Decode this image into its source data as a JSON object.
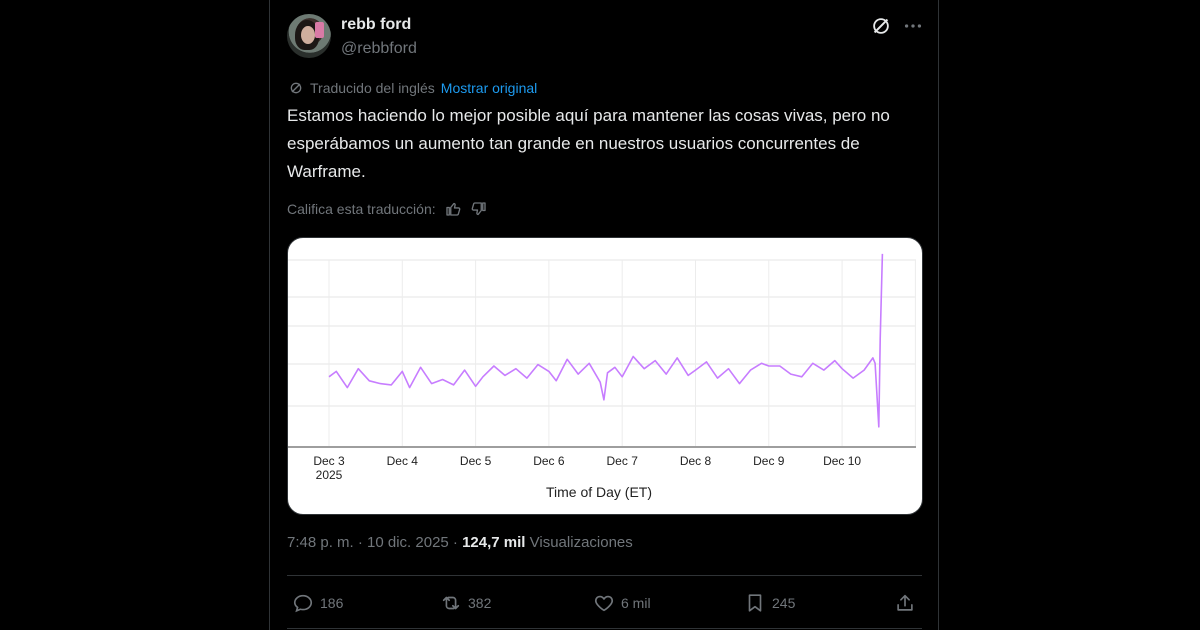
{
  "post": {
    "display_name": "rebb ford",
    "handle": "@rebbford",
    "translated_label": "Traducido del inglés",
    "show_original": "Mostrar original",
    "text": "Estamos haciendo lo mejor posible aquí para mantener las cosas vivas, pero no esperábamos un aumento tan grande en nuestros usuarios concurrentes de Warframe.",
    "rate_label": "Califica esta traducción:",
    "timestamp": "7:48 p. m. · 10 dic. 2025 · ",
    "views_count": "124,7 mil",
    "views_label": " Visualizaciones"
  },
  "actions": {
    "replies": "186",
    "reposts": "382",
    "likes": "6 mil",
    "bookmarks": "245"
  },
  "icons": [
    "grok-icon",
    "more-icon",
    "translate-icon",
    "thumbs-up-icon",
    "thumbs-down-icon",
    "reply-icon",
    "repost-icon",
    "like-icon",
    "bookmark-icon",
    "share-icon"
  ],
  "colors": {
    "accent": "#1d9bf0",
    "line": "#c77dff"
  },
  "chart_data": {
    "type": "line",
    "title": "",
    "xlabel": "Time of Day (ET)",
    "ylabel": "",
    "tick_labels": [
      "Dec 3",
      "Dec 4",
      "Dec 5",
      "Dec 6",
      "Dec 7",
      "Dec 8",
      "Dec 9",
      "Dec 10"
    ],
    "year_label": "2025",
    "grid": true,
    "x": [
      3.0,
      3.1,
      3.25,
      3.4,
      3.55,
      3.7,
      3.85,
      4.0,
      4.1,
      4.25,
      4.4,
      4.55,
      4.7,
      4.85,
      5.0,
      5.1,
      5.25,
      5.4,
      5.55,
      5.7,
      5.85,
      6.0,
      6.1,
      6.25,
      6.4,
      6.55,
      6.7,
      6.75,
      6.8,
      6.9,
      7.0,
      7.15,
      7.3,
      7.45,
      7.6,
      7.75,
      7.9,
      8.0,
      8.15,
      8.3,
      8.45,
      8.6,
      8.75,
      8.9,
      9.0,
      9.15,
      9.3,
      9.45,
      9.6,
      9.75,
      9.9,
      10.0,
      10.15,
      10.3,
      10.42,
      10.45,
      10.5,
      10.52,
      10.55
    ],
    "series": [
      {
        "values": [
          52,
          56,
          44,
          58,
          49,
          47,
          46,
          56,
          44,
          59,
          47,
          50,
          46,
          57,
          45,
          52,
          60,
          53,
          58,
          51,
          61,
          56,
          49,
          65,
          54,
          62,
          48,
          35,
          55,
          59,
          52,
          67,
          58,
          64,
          54,
          66,
          53,
          57,
          63,
          51,
          58,
          47,
          57,
          62,
          60,
          60,
          54,
          52,
          62,
          57,
          64,
          58,
          51,
          57,
          66,
          62,
          15,
          80,
          143
        ]
      }
    ]
  }
}
